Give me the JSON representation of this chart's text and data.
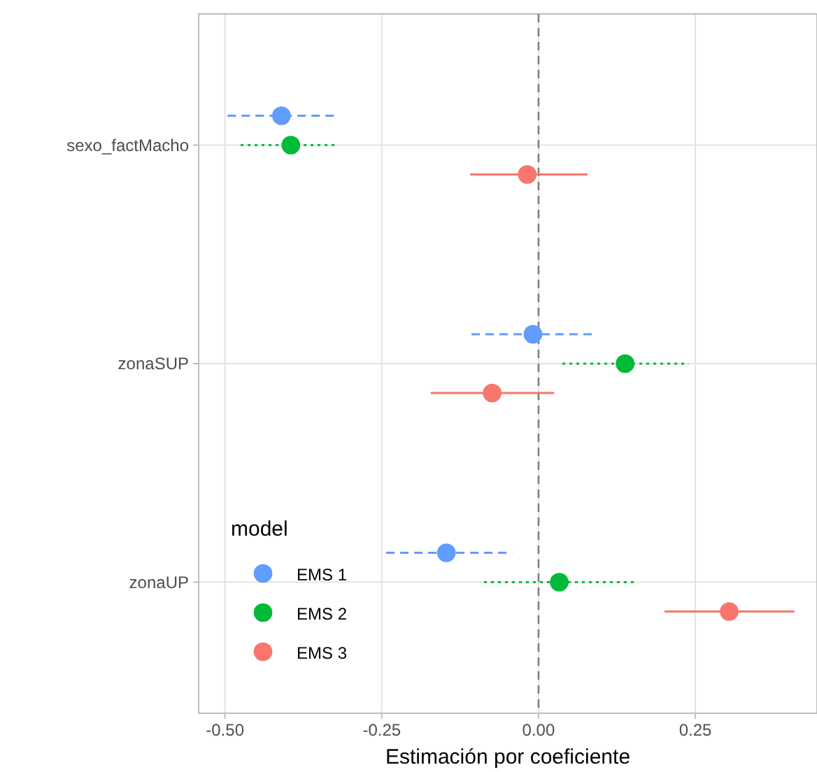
{
  "chart_data": {
    "type": "scatter",
    "orientation": "horizontal",
    "xlabel": "Estimación por coeficiente",
    "legend_title": "model",
    "legend": "bottom left",
    "grid": true,
    "marker": "circle",
    "categories": [
      "sexo_factMacho",
      "zonaSUP",
      "zonaUP"
    ],
    "xlim": [
      -0.542,
      0.444
    ],
    "xticks": [
      {
        "value": -0.5,
        "label": "-0.50"
      },
      {
        "value": -0.25,
        "label": "-0.25"
      },
      {
        "value": 0,
        "label": "0.00"
      },
      {
        "value": 0.25,
        "label": "0.25"
      }
    ],
    "ref_lines": [
      {
        "axis": "x",
        "value": 0,
        "line_style": "dashed",
        "color": "#7f7f7f"
      }
    ],
    "series": [
      {
        "name": "EMS 1",
        "color": "#619cff",
        "line_style": "dashed",
        "values": [
          -0.41,
          -0.009,
          -0.147
        ],
        "errors": [
          [
            -0.496,
            -0.319
          ],
          [
            -0.107,
            0.085
          ],
          [
            -0.243,
            -0.042
          ]
        ]
      },
      {
        "name": "EMS 2",
        "color": "#00ba38",
        "line_style": "dotted",
        "values": [
          -0.395,
          0.138,
          0.033
        ],
        "errors": [
          [
            -0.475,
            -0.319
          ],
          [
            0.038,
            0.239
          ],
          [
            -0.087,
            0.156
          ]
        ]
      },
      {
        "name": "EMS 3",
        "color": "#f8766d",
        "line_style": "solid",
        "values": [
          -0.018,
          -0.074,
          0.304
        ],
        "errors": [
          [
            -0.109,
            0.078
          ],
          [
            -0.172,
            0.025
          ],
          [
            0.201,
            0.408
          ]
        ]
      }
    ]
  }
}
